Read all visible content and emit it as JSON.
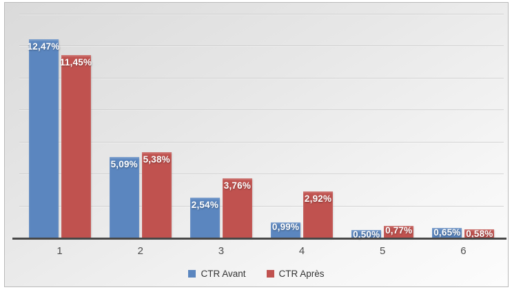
{
  "chart_data": {
    "type": "bar",
    "title": "",
    "categories": [
      "1",
      "2",
      "3",
      "4",
      "5",
      "6"
    ],
    "series": [
      {
        "name": "CTR Avant",
        "color": "#5b86bf",
        "values": [
          12.47,
          5.09,
          2.54,
          0.99,
          0.5,
          0.65
        ],
        "labels": [
          "12,47%",
          "5,09%",
          "2,54%",
          "0,99%",
          "0,50%",
          "0,65%"
        ]
      },
      {
        "name": "CTR Après",
        "color": "#c0524f",
        "values": [
          11.45,
          5.38,
          3.76,
          2.92,
          0.77,
          0.58
        ],
        "labels": [
          "11,45%",
          "5,38%",
          "3,76%",
          "2,92%",
          "0,77%",
          "0,58%"
        ]
      }
    ],
    "xlabel": "",
    "ylabel": "",
    "ylim": [
      0,
      14
    ],
    "gridline_step": 2,
    "grid": "on",
    "legend_position": "bottom",
    "value_label_color": "#ffffff",
    "background": "gray-gradient",
    "baseline_color": "#474747"
  }
}
